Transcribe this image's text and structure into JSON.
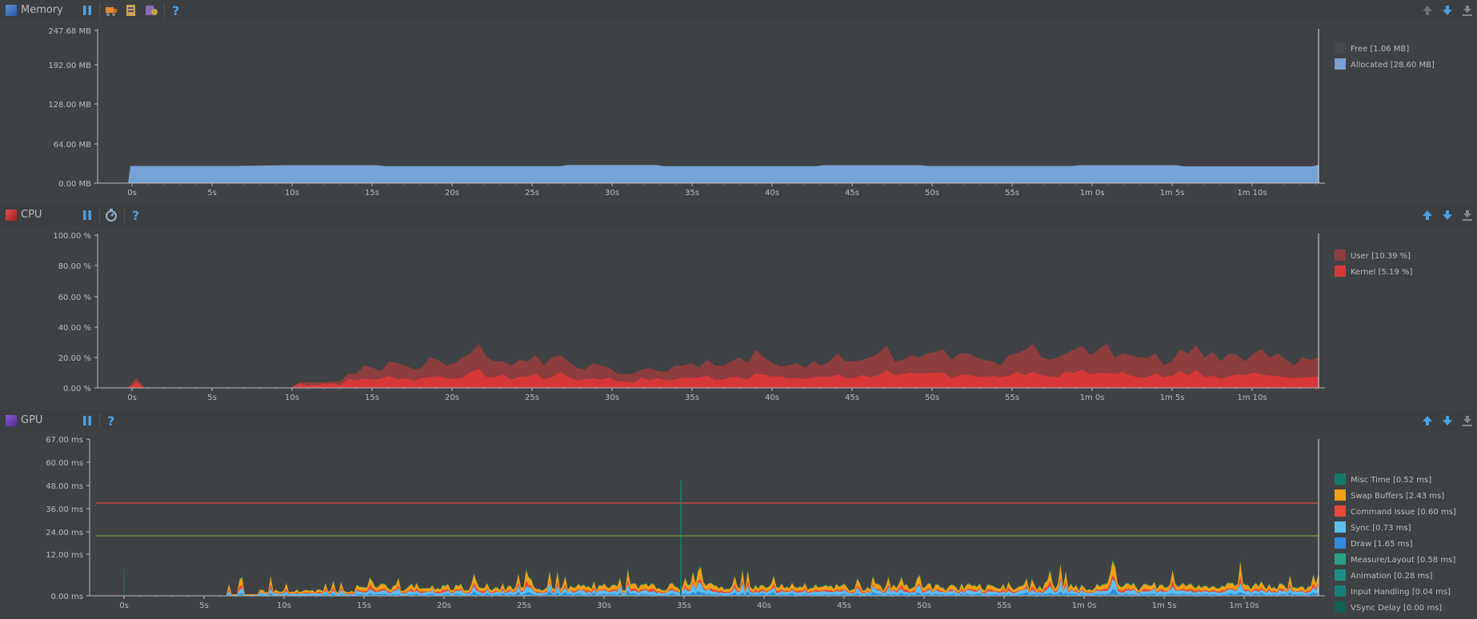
{
  "memory": {
    "title": "Memory",
    "y_ticks": [
      "247.68 MB",
      "192.00 MB",
      "128.00 MB",
      "64.00 MB",
      "0.00 MB"
    ],
    "x_ticks": [
      "0s",
      "5s",
      "10s",
      "15s",
      "20s",
      "25s",
      "30s",
      "35s",
      "40s",
      "45s",
      "50s",
      "55s",
      "1m 0s",
      "1m 5s",
      "1m 10s"
    ],
    "legend": [
      {
        "label": "Free [1.06 MB]",
        "color": "#45494a"
      },
      {
        "label": "Allocated [28.60 MB]",
        "color": "#76a3d6"
      }
    ]
  },
  "cpu": {
    "title": "CPU",
    "y_ticks": [
      "100.00 %",
      "80.00 %",
      "60.00 %",
      "40.00 %",
      "20.00 %",
      "0.00 %"
    ],
    "x_ticks": [
      "0s",
      "5s",
      "10s",
      "15s",
      "20s",
      "25s",
      "30s",
      "35s",
      "40s",
      "45s",
      "50s",
      "55s",
      "1m 0s",
      "1m 5s",
      "1m 10s"
    ],
    "legend": [
      {
        "label": "User [10.39 %]",
        "color": "#8d3d3d"
      },
      {
        "label": "Kernel [5.19 %]",
        "color": "#d63838"
      }
    ]
  },
  "gpu": {
    "title": "GPU",
    "y_ticks": [
      "67.00 ms",
      "60.00 ms",
      "48.00 ms",
      "36.00 ms",
      "24.00 ms",
      "12.00 ms",
      "0.00 ms"
    ],
    "x_ticks": [
      "0s",
      "5s",
      "10s",
      "15s",
      "20s",
      "25s",
      "30s",
      "35s",
      "40s",
      "45s",
      "50s",
      "55s",
      "1m 0s",
      "1m 5s",
      "1m 10s"
    ],
    "legend": [
      {
        "label": "Misc Time [0.52 ms]",
        "color": "#127a6b"
      },
      {
        "label": "Swap Buffers [2.43 ms]",
        "color": "#f0a012"
      },
      {
        "label": "Command Issue [0.60 ms]",
        "color": "#e8483a"
      },
      {
        "label": "Sync [0.73 ms]",
        "color": "#5bc0f0"
      },
      {
        "label": "Draw [1.65 ms]",
        "color": "#2f8ae0"
      },
      {
        "label": "Measure/Layout [0.58 ms]",
        "color": "#27a08a"
      },
      {
        "label": "Animation [0.28 ms]",
        "color": "#1b8f86"
      },
      {
        "label": "Input Handling [0.04 ms]",
        "color": "#167f79"
      },
      {
        "label": "VSync Delay [0.00 ms]",
        "color": "#0f5f57"
      }
    ]
  },
  "colors": {
    "allocated": "#76a3d6",
    "cpu_user": "#8d3d3d",
    "cpu_kernel": "#d63838",
    "gpu_threshold_red": "#d9484b",
    "gpu_threshold_green": "#6a9b3b"
  }
}
